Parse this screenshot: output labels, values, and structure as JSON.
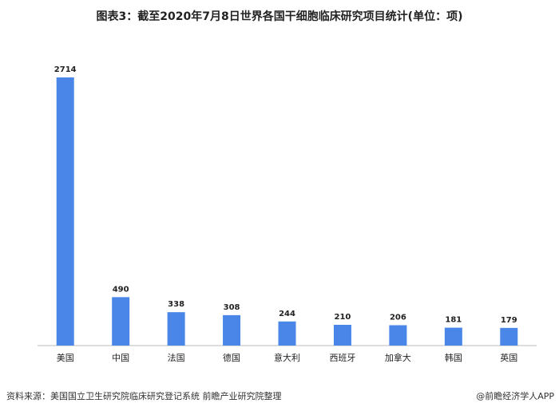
{
  "chart_data": {
    "type": "bar",
    "title": "图表3：截至2020年7月8日世界各国干细胞临床研究项目统计(单位：项)",
    "categories": [
      "美国",
      "中国",
      "法国",
      "德国",
      "意大利",
      "西班牙",
      "加拿大",
      "韩国",
      "英国"
    ],
    "values": [
      2714,
      490,
      338,
      308,
      244,
      210,
      206,
      181,
      179
    ],
    "color": "#4a86e8",
    "source": "资料来源：美国国立卫生研究院临床研究登记系统 前瞻产业研究院整理",
    "credit": "@前瞻经济学人APP"
  }
}
